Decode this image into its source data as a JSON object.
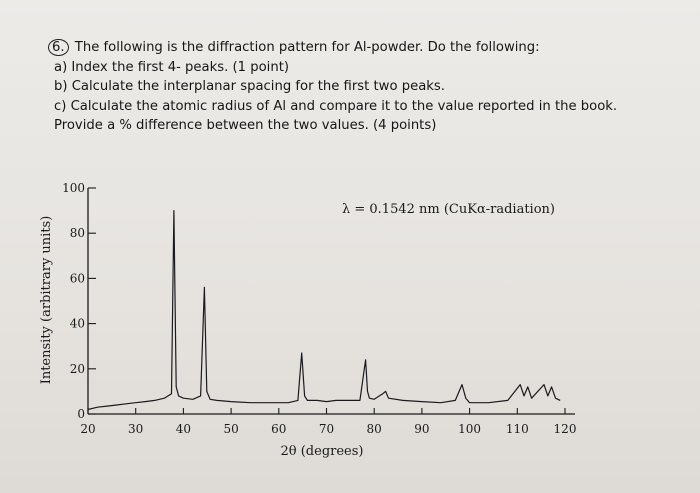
{
  "question": {
    "number": "6.",
    "intro": "The following is the diffraction pattern for Al-powder. Do the following:",
    "part_a": "a) Index the first 4- peaks. (1 point)",
    "part_b": "b) Calculate the interplanar spacing for the first two peaks.",
    "part_c_line1": "c) Calculate the atomic radius of Al and compare it to the value reported in the book.",
    "part_c_line2": "Provide a % difference between the two values. (4 points)"
  },
  "chart_data": {
    "type": "line",
    "title": "",
    "annotation": "λ = 0.1542 nm (CuKα-radiation)",
    "xlabel": "2θ (degrees)",
    "ylabel": "Intensity (arbitrary units)",
    "xlim": [
      20,
      120
    ],
    "ylim": [
      0,
      100
    ],
    "x_ticks": [
      20,
      30,
      40,
      50,
      60,
      70,
      80,
      90,
      100,
      110,
      120
    ],
    "y_ticks": [
      0,
      20,
      40,
      60,
      80,
      100
    ],
    "grid": false,
    "legend": "none",
    "series": [
      {
        "values_x": [
          20,
          22,
          24,
          26,
          28,
          30,
          32,
          34,
          36,
          37.5,
          38.0,
          38.5,
          39,
          40,
          42,
          43.6,
          44.4,
          44.9,
          45.6,
          47,
          50,
          54,
          58,
          62,
          64,
          64.8,
          65.4,
          66,
          68,
          70,
          72,
          74,
          77,
          78.2,
          78.6,
          79,
          80,
          81.8,
          82.4,
          83,
          86,
          90,
          94,
          97,
          98.4,
          99.2,
          100,
          104,
          108,
          110.6,
          111.4,
          112.2,
          113,
          115.6,
          116.4,
          117.2,
          118,
          119
        ],
        "values_y": [
          2,
          3,
          3.5,
          4,
          4.5,
          5,
          5.5,
          6,
          7,
          9,
          90,
          12,
          8,
          7,
          6.5,
          8,
          56,
          10,
          6.5,
          6,
          5.5,
          5,
          5,
          5,
          6,
          27,
          8,
          6,
          6,
          5.5,
          6,
          6,
          6,
          24,
          10,
          7,
          6.5,
          9,
          10,
          7,
          6,
          5.5,
          5,
          6,
          13,
          7,
          5,
          5,
          6,
          13,
          8,
          12,
          7,
          13,
          8,
          12,
          7,
          6
        ]
      }
    ]
  }
}
